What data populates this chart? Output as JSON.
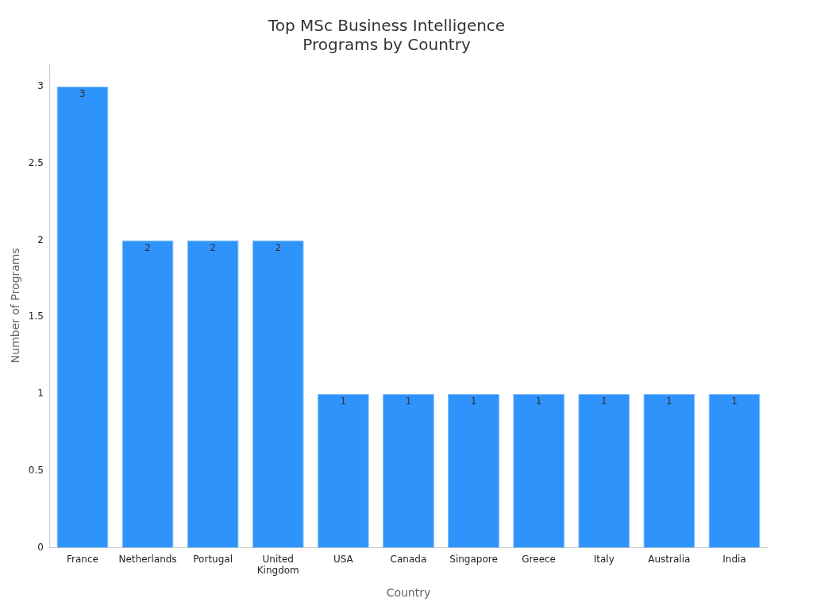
{
  "chart_data": {
    "type": "bar",
    "title": "Top MSc Business Intelligence Programs by Country",
    "xlabel": "Country",
    "ylabel": "Number of Programs",
    "categories": [
      "France",
      "Netherlands",
      "Portugal",
      "United Kingdom",
      "USA",
      "Canada",
      "Singapore",
      "Greece",
      "Italy",
      "Australia",
      "India"
    ],
    "values": [
      3,
      2,
      2,
      2,
      1,
      1,
      1,
      1,
      1,
      1,
      1
    ],
    "color": "#2e93fa",
    "ylim": [
      0,
      3.15
    ],
    "yticks": [
      0,
      0.5,
      1,
      1.5,
      2,
      2.5,
      3
    ],
    "grid": false,
    "legend": false,
    "data_labels": true
  }
}
